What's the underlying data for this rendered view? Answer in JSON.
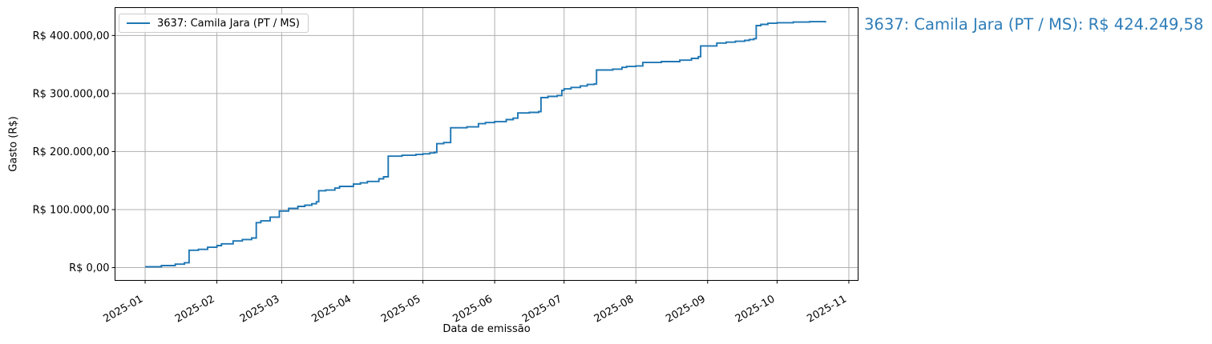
{
  "figure": {
    "background": "#ffffff",
    "legend": {
      "label": "3637: Camila Jara (PT / MS)",
      "line_color": "#1f77b4"
    },
    "annotation": {
      "text": "3637: Camila Jara (PT / MS): R$ 424.249,58",
      "color": "#2f7db8"
    }
  },
  "chart_data": {
    "type": "line",
    "step": "post",
    "title": "",
    "xlabel": "Data de emissão",
    "ylabel": "Gasto (R$)",
    "grid": true,
    "legend_position": "upper left",
    "grid_color": "#b0b0b0",
    "spine_color": "#000000",
    "xlim": [
      "2024-12-19",
      "2025-11-05"
    ],
    "ylim": [
      -22000,
      448000
    ],
    "x_ticks": [
      {
        "date": "2025-01-01",
        "label": "2025-01"
      },
      {
        "date": "2025-02-01",
        "label": "2025-02"
      },
      {
        "date": "2025-03-01",
        "label": "2025-03"
      },
      {
        "date": "2025-04-01",
        "label": "2025-04"
      },
      {
        "date": "2025-05-01",
        "label": "2025-05"
      },
      {
        "date": "2025-06-01",
        "label": "2025-06"
      },
      {
        "date": "2025-07-01",
        "label": "2025-07"
      },
      {
        "date": "2025-08-01",
        "label": "2025-08"
      },
      {
        "date": "2025-09-01",
        "label": "2025-09"
      },
      {
        "date": "2025-10-01",
        "label": "2025-10"
      },
      {
        "date": "2025-11-01",
        "label": "2025-11"
      }
    ],
    "y_ticks": [
      {
        "value": 0,
        "label": "R$ 0,00"
      },
      {
        "value": 100000,
        "label": "R$ 100.000,00"
      },
      {
        "value": 200000,
        "label": "R$ 200.000,00"
      },
      {
        "value": 300000,
        "label": "R$ 300.000,00"
      },
      {
        "value": 400000,
        "label": "R$ 400.000,00"
      }
    ],
    "series": [
      {
        "name": "3637: Camila Jara (PT / MS)",
        "color": "#1f77b4",
        "final_value_label": "R$ 424.249,58",
        "points": [
          [
            "2025-01-01",
            1500
          ],
          [
            "2025-01-08",
            3500
          ],
          [
            "2025-01-14",
            6000
          ],
          [
            "2025-01-18",
            8500
          ],
          [
            "2025-01-20",
            30000
          ],
          [
            "2025-01-24",
            31500
          ],
          [
            "2025-01-28",
            35000
          ],
          [
            "2025-02-01",
            38000
          ],
          [
            "2025-02-03",
            41000
          ],
          [
            "2025-02-08",
            46000
          ],
          [
            "2025-02-12",
            48500
          ],
          [
            "2025-02-16",
            51000
          ],
          [
            "2025-02-18",
            77500
          ],
          [
            "2025-02-20",
            80500
          ],
          [
            "2025-02-24",
            87000
          ],
          [
            "2025-02-28",
            97500
          ],
          [
            "2025-03-04",
            102000
          ],
          [
            "2025-03-08",
            105500
          ],
          [
            "2025-03-11",
            107500
          ],
          [
            "2025-03-14",
            110000
          ],
          [
            "2025-03-16",
            113500
          ],
          [
            "2025-03-17",
            132500
          ],
          [
            "2025-03-20",
            133600
          ],
          [
            "2025-03-24",
            137000
          ],
          [
            "2025-03-26",
            140000
          ],
          [
            "2025-04-01",
            144000
          ],
          [
            "2025-04-04",
            146000
          ],
          [
            "2025-04-07",
            148500
          ],
          [
            "2025-04-12",
            153000
          ],
          [
            "2025-04-14",
            156500
          ],
          [
            "2025-04-16",
            192000
          ],
          [
            "2025-04-22",
            193500
          ],
          [
            "2025-04-28",
            195000
          ],
          [
            "2025-05-01",
            196000
          ],
          [
            "2025-05-04",
            197500
          ],
          [
            "2025-05-06",
            198500
          ],
          [
            "2025-05-07",
            213500
          ],
          [
            "2025-05-10",
            215500
          ],
          [
            "2025-05-13",
            241000
          ],
          [
            "2025-05-20",
            242500
          ],
          [
            "2025-05-25",
            248000
          ],
          [
            "2025-05-28",
            250000
          ],
          [
            "2025-06-01",
            251500
          ],
          [
            "2025-06-06",
            255000
          ],
          [
            "2025-06-09",
            257500
          ],
          [
            "2025-06-11",
            266500
          ],
          [
            "2025-06-16",
            267500
          ],
          [
            "2025-06-20",
            268800
          ],
          [
            "2025-06-21",
            293000
          ],
          [
            "2025-06-24",
            295000
          ],
          [
            "2025-06-28",
            296500
          ],
          [
            "2025-06-30",
            305500
          ],
          [
            "2025-07-01",
            308000
          ],
          [
            "2025-07-04",
            310500
          ],
          [
            "2025-07-08",
            313000
          ],
          [
            "2025-07-11",
            315500
          ],
          [
            "2025-07-14",
            316500
          ],
          [
            "2025-07-15",
            340500
          ],
          [
            "2025-07-22",
            342000
          ],
          [
            "2025-07-26",
            345000
          ],
          [
            "2025-07-28",
            346500
          ],
          [
            "2025-08-01",
            347500
          ],
          [
            "2025-08-04",
            353500
          ],
          [
            "2025-08-12",
            355000
          ],
          [
            "2025-08-20",
            357500
          ],
          [
            "2025-08-25",
            360500
          ],
          [
            "2025-08-28",
            363500
          ],
          [
            "2025-08-29",
            382000
          ],
          [
            "2025-09-05",
            387000
          ],
          [
            "2025-09-09",
            388500
          ],
          [
            "2025-09-13",
            390000
          ],
          [
            "2025-09-17",
            391500
          ],
          [
            "2025-09-19",
            393000
          ],
          [
            "2025-09-21",
            394500
          ],
          [
            "2025-09-22",
            417000
          ],
          [
            "2025-09-24",
            419000
          ],
          [
            "2025-09-27",
            421000
          ],
          [
            "2025-10-01",
            422000
          ],
          [
            "2025-10-08",
            423000
          ],
          [
            "2025-10-15",
            423800
          ],
          [
            "2025-10-22",
            424249.58
          ]
        ]
      }
    ]
  }
}
